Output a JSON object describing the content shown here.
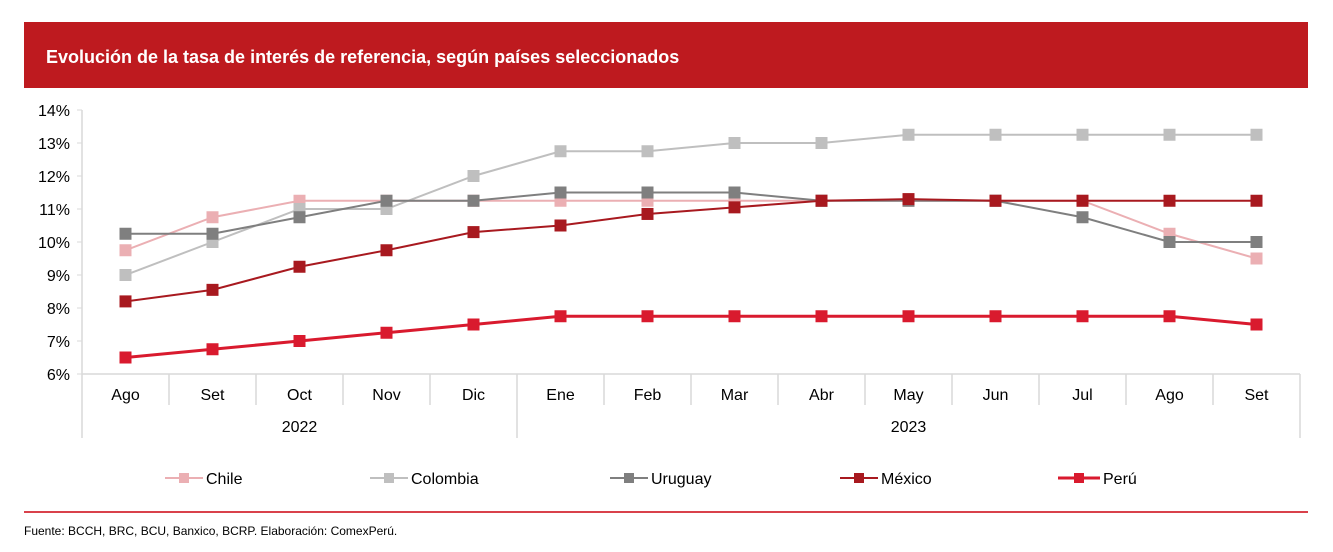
{
  "header": {
    "title": "Evolución de la tasa de interés de referencia, según países seleccionados"
  },
  "footer": {
    "source": "Fuente: BCCH, BRC, BCU, Banxico, BCRP. Elaboración: ComexPerú."
  },
  "colors": {
    "header": "#BE1A1F",
    "rule": "#D9414B"
  },
  "chart_data": {
    "type": "line",
    "categories": [
      "Ago",
      "Set",
      "Oct",
      "Nov",
      "Dic",
      "Ene",
      "Feb",
      "Mar",
      "Abr",
      "May",
      "Jun",
      "Jul",
      "Ago",
      "Set"
    ],
    "years": [
      {
        "label": "2022",
        "span": 5
      },
      {
        "label": "2023",
        "span": 9
      }
    ],
    "ylim": [
      6,
      14
    ],
    "yticks": [
      "6%",
      "7%",
      "8%",
      "9%",
      "10%",
      "11%",
      "12%",
      "13%",
      "14%"
    ],
    "legend_position": "bottom",
    "grid": false,
    "series": [
      {
        "name": "Chile",
        "color": "#EBAFB3",
        "values": [
          9.75,
          10.75,
          11.25,
          11.25,
          11.25,
          11.25,
          11.25,
          11.25,
          11.25,
          11.25,
          11.25,
          11.25,
          10.25,
          9.5
        ]
      },
      {
        "name": "Colombia",
        "color": "#BFBFBF",
        "values": [
          9,
          10,
          11,
          11,
          12,
          12.75,
          12.75,
          13,
          13,
          13.25,
          13.25,
          13.25,
          13.25,
          13.25
        ]
      },
      {
        "name": "Uruguay",
        "color": "#7F7F7F",
        "values": [
          10.25,
          10.25,
          10.75,
          11.25,
          11.25,
          11.5,
          11.5,
          11.5,
          11.25,
          11.25,
          11.25,
          10.75,
          10,
          10
        ]
      },
      {
        "name": "México",
        "color": "#A8191F",
        "values": [
          8.2,
          8.55,
          9.25,
          9.75,
          10.3,
          10.5,
          10.85,
          11.05,
          11.25,
          11.3,
          11.25,
          11.25,
          11.25,
          11.25
        ]
      },
      {
        "name": "Perú",
        "color": "#D91A2E",
        "values": [
          6.5,
          6.75,
          7,
          7.25,
          7.5,
          7.75,
          7.75,
          7.75,
          7.75,
          7.75,
          7.75,
          7.75,
          7.75,
          7.5
        ]
      }
    ]
  }
}
